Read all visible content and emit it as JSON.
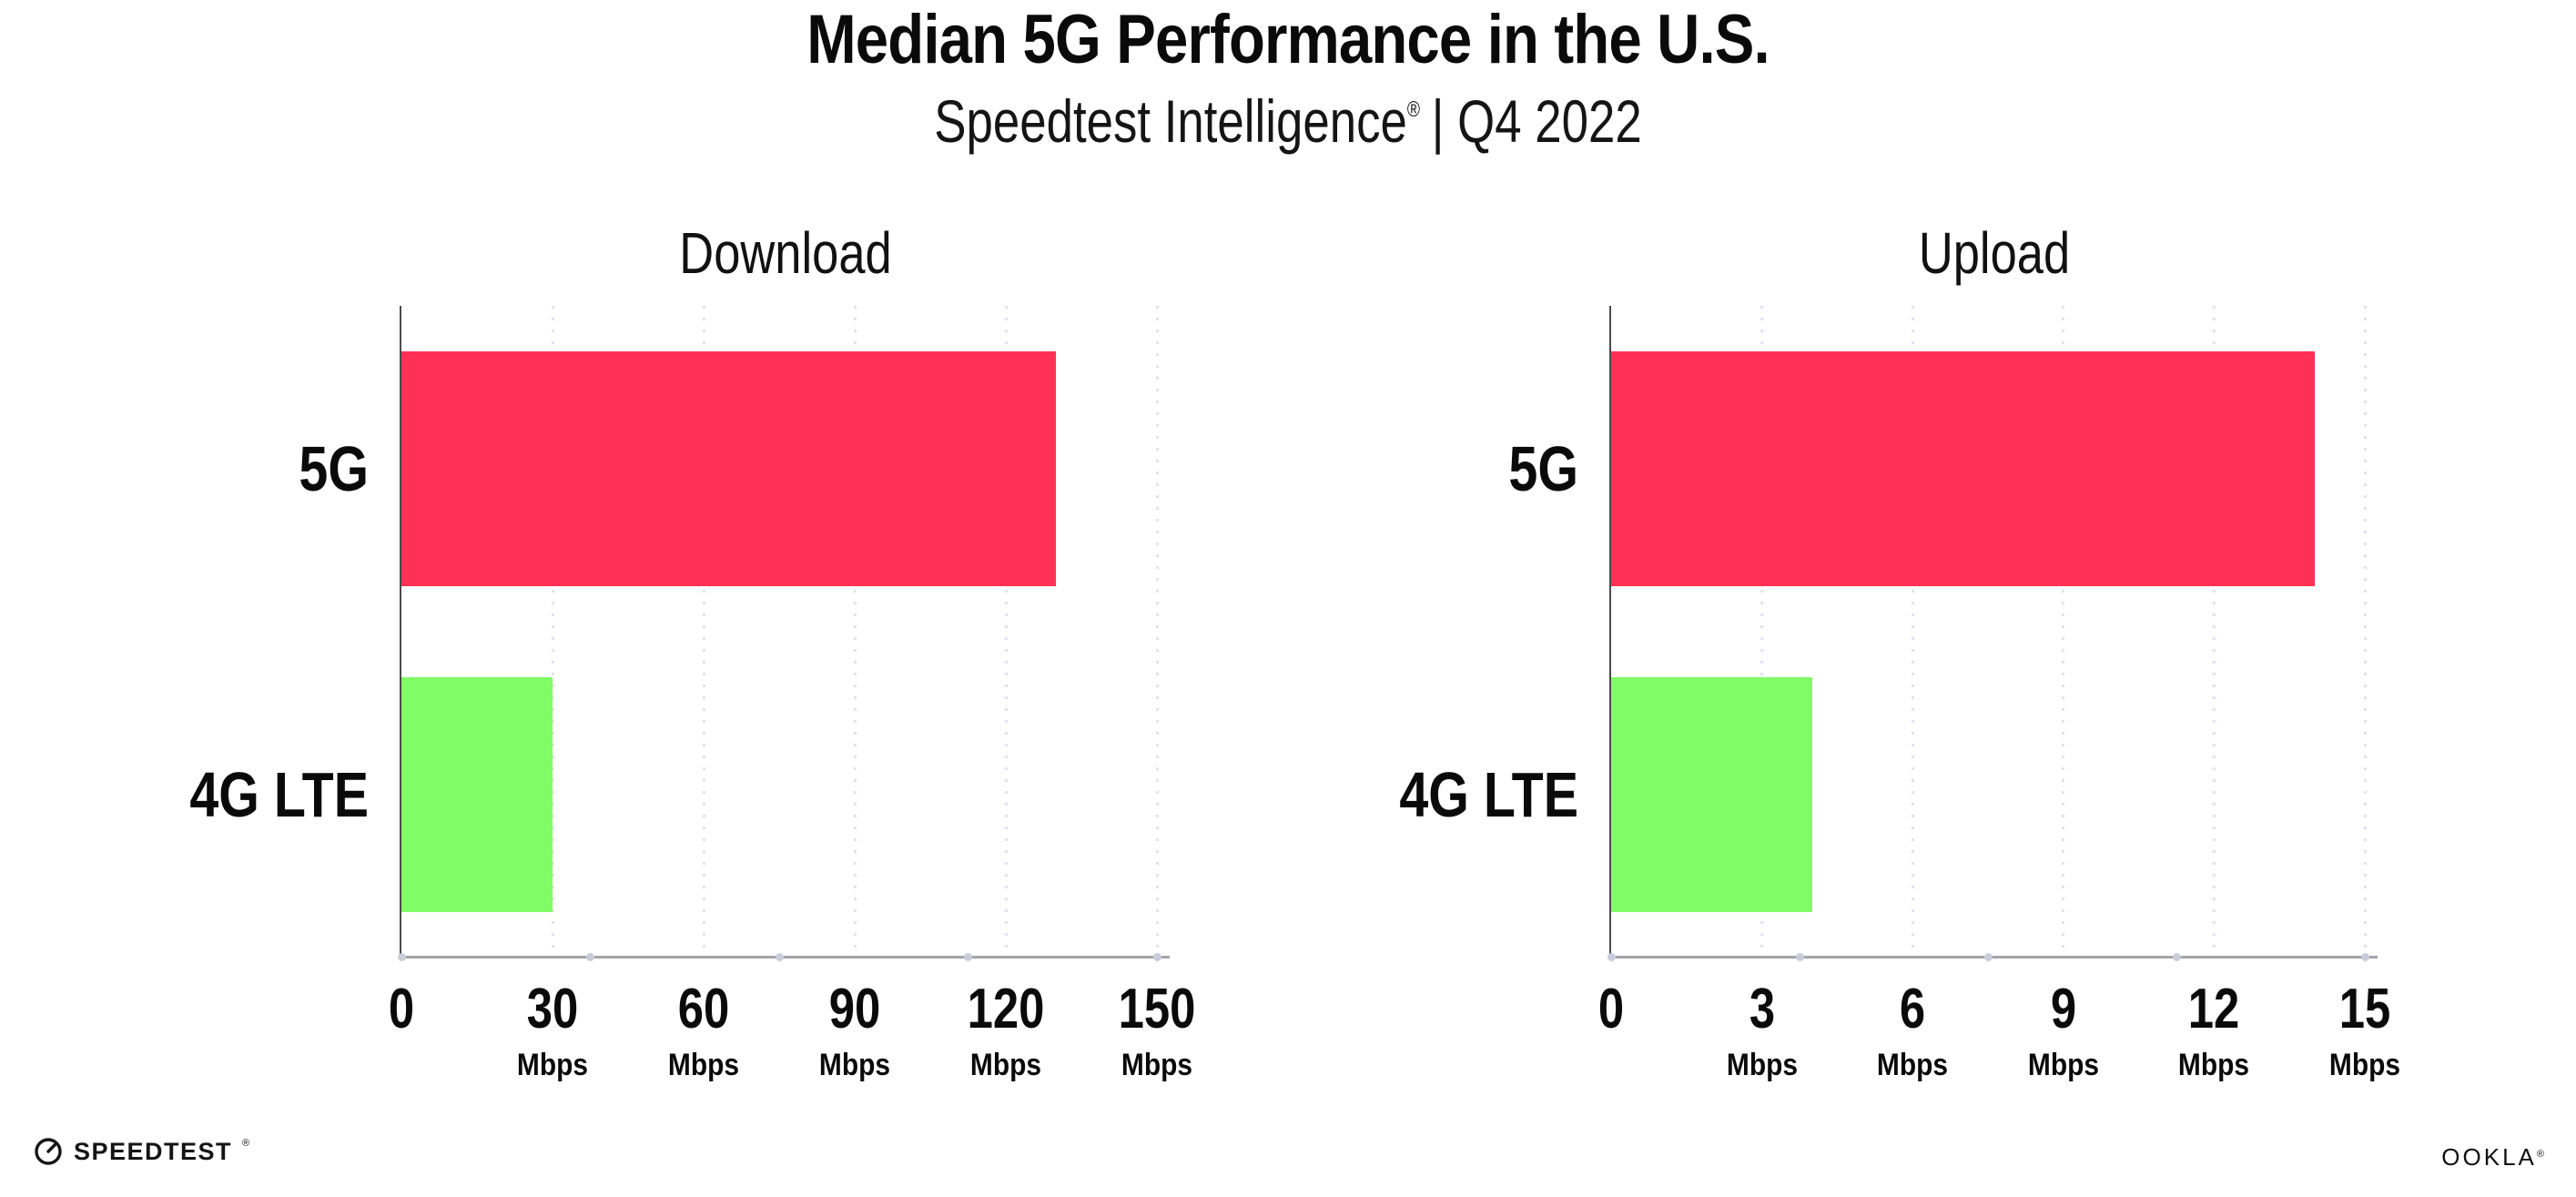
{
  "header": {
    "title": "Median 5G Performance in the U.S.",
    "subtitle": {
      "brand": "Speedtest Intelligence",
      "registered_mark": "®",
      "rest": "| Q4 2022"
    }
  },
  "chart_data": [
    {
      "type": "bar",
      "orientation": "horizontal",
      "title": "Download",
      "categories": [
        "5G",
        "4G LTE"
      ],
      "values": [
        130,
        30
      ],
      "unit": "Mbps",
      "xlim": [
        0,
        150
      ],
      "xticks": [
        0,
        30,
        60,
        90,
        120,
        150
      ],
      "bar_colors": [
        "#FF3056",
        "#80FC66"
      ],
      "grid": "vertical dotted gridlines at major ticks",
      "legend": "none"
    },
    {
      "type": "bar",
      "orientation": "horizontal",
      "title": "Upload",
      "categories": [
        "5G",
        "4G LTE"
      ],
      "values": [
        14,
        4
      ],
      "unit": "Mbps",
      "xlim": [
        0,
        15
      ],
      "xticks": [
        0,
        3,
        6,
        9,
        12,
        15
      ],
      "bar_colors": [
        "#FF3056",
        "#80FC66"
      ],
      "grid": "vertical dotted gridlines at major ticks",
      "legend": "none"
    }
  ],
  "colors": {
    "bar_5g": "#FF3056",
    "bar_4g_lte": "#80FC66",
    "gridline": "#E2E2EC",
    "x_axis": "#A4A4AB",
    "y_axis": "#4B4B4B",
    "axis_tick_dot": "#CBCBD9",
    "text": "#0A0A0A",
    "background": "#FFFFFF"
  },
  "footer": {
    "speedtest_label": "SPEEDTEST",
    "speedtest_mark": "®",
    "ookla_label": "OOKLA",
    "ookla_mark": "®"
  }
}
